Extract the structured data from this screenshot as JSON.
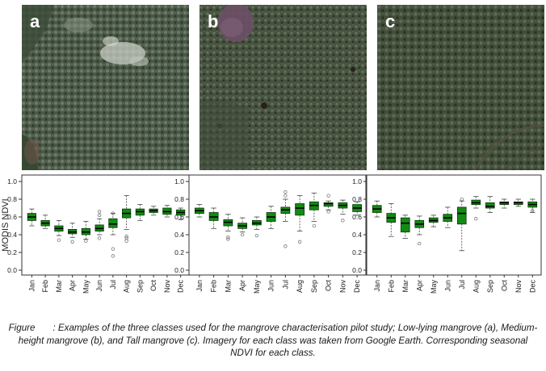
{
  "panels": [
    {
      "label": "a",
      "colors": {
        "base": "#4b5a48",
        "canopy_light": "#6d7b68",
        "canopy_dark": "#2f3a2d"
      },
      "features": [
        "white-cloud-patches",
        "dark-soil-patch"
      ]
    },
    {
      "label": "b",
      "colors": {
        "base": "#46523f",
        "canopy_light": "#62705a",
        "canopy_dark": "#2c3527"
      },
      "features": [
        "purple-water-pond",
        "dark-holes"
      ]
    },
    {
      "label": "c",
      "colors": {
        "base": "#424e3a",
        "canopy_light": "#5d6b54",
        "canopy_dark": "#2a3224"
      },
      "features": [
        "creek-channel"
      ]
    }
  ],
  "colors": {
    "box_fill": "#138a13",
    "box_stroke": "#0a3d0a",
    "axis": "#333333",
    "outlier": "#666666"
  },
  "y_axis_label": "MODIS NDVI",
  "chart_data": [
    {
      "type": "box",
      "categories": [
        "Jan",
        "Feb",
        "Mar",
        "Apr",
        "May",
        "Jun",
        "Jul",
        "Aug",
        "Sep",
        "Oct",
        "Nov",
        "Dec"
      ],
      "ylim": [
        0,
        1.0
      ],
      "yticks": [
        "0.0",
        "0.2",
        "0.4",
        "0.6",
        "0.8",
        "1.0"
      ],
      "boxes": [
        {
          "min": 0.5,
          "q1": 0.56,
          "median": 0.6,
          "q3": 0.64,
          "max": 0.69,
          "outliers": []
        },
        {
          "min": 0.47,
          "q1": 0.5,
          "median": 0.53,
          "q3": 0.56,
          "max": 0.62,
          "outliers": []
        },
        {
          "min": 0.39,
          "q1": 0.44,
          "median": 0.47,
          "q3": 0.5,
          "max": 0.56,
          "outliers": [
            0.34
          ]
        },
        {
          "min": 0.37,
          "q1": 0.41,
          "median": 0.43,
          "q3": 0.46,
          "max": 0.53,
          "outliers": [
            0.32
          ]
        },
        {
          "min": 0.35,
          "q1": 0.4,
          "median": 0.43,
          "q3": 0.47,
          "max": 0.55,
          "outliers": [
            0.33
          ]
        },
        {
          "min": 0.4,
          "q1": 0.44,
          "median": 0.47,
          "q3": 0.51,
          "max": 0.58,
          "outliers": [
            0.36,
            0.62,
            0.66
          ]
        },
        {
          "min": 0.4,
          "q1": 0.48,
          "median": 0.52,
          "q3": 0.58,
          "max": 0.64,
          "outliers": [
            0.16,
            0.24,
            0.64
          ]
        },
        {
          "min": 0.46,
          "q1": 0.59,
          "median": 0.64,
          "q3": 0.69,
          "max": 0.84,
          "outliers": [
            0.33,
            0.36,
            0.38
          ]
        },
        {
          "min": 0.56,
          "q1": 0.62,
          "median": 0.66,
          "q3": 0.69,
          "max": 0.74,
          "outliers": []
        },
        {
          "min": 0.62,
          "q1": 0.65,
          "median": 0.67,
          "q3": 0.69,
          "max": 0.72,
          "outliers": []
        },
        {
          "min": 0.6,
          "q1": 0.63,
          "median": 0.66,
          "q3": 0.7,
          "max": 0.73,
          "outliers": []
        },
        {
          "min": 0.57,
          "q1": 0.62,
          "median": 0.65,
          "q3": 0.68,
          "max": 0.7,
          "outliers": []
        }
      ]
    },
    {
      "type": "box",
      "categories": [
        "Jan",
        "Feb",
        "Mar",
        "Apr",
        "May",
        "Jun",
        "Jul",
        "Aug",
        "Sep",
        "Oct",
        "Nov",
        "Dec"
      ],
      "ylim": [
        0,
        1.0
      ],
      "yticks": [
        "0.0",
        "0.2",
        "0.4",
        "0.6",
        "0.8",
        "1.0"
      ],
      "boxes": [
        {
          "min": 0.6,
          "q1": 0.64,
          "median": 0.67,
          "q3": 0.7,
          "max": 0.74,
          "outliers": []
        },
        {
          "min": 0.47,
          "q1": 0.56,
          "median": 0.6,
          "q3": 0.65,
          "max": 0.7,
          "outliers": []
        },
        {
          "min": 0.44,
          "q1": 0.5,
          "median": 0.54,
          "q3": 0.57,
          "max": 0.63,
          "outliers": [
            0.35,
            0.37
          ]
        },
        {
          "min": 0.43,
          "q1": 0.47,
          "median": 0.5,
          "q3": 0.53,
          "max": 0.59,
          "outliers": [
            0.4
          ]
        },
        {
          "min": 0.46,
          "q1": 0.51,
          "median": 0.53,
          "q3": 0.56,
          "max": 0.6,
          "outliers": [
            0.39
          ]
        },
        {
          "min": 0.47,
          "q1": 0.55,
          "median": 0.6,
          "q3": 0.65,
          "max": 0.72,
          "outliers": []
        },
        {
          "min": 0.55,
          "q1": 0.64,
          "median": 0.68,
          "q3": 0.71,
          "max": 0.8,
          "outliers": [
            0.27,
            0.84,
            0.88
          ]
        },
        {
          "min": 0.44,
          "q1": 0.62,
          "median": 0.7,
          "q3": 0.75,
          "max": 0.84,
          "outliers": [
            0.32
          ]
        },
        {
          "min": 0.55,
          "q1": 0.68,
          "median": 0.73,
          "q3": 0.77,
          "max": 0.87,
          "outliers": [
            0.5
          ]
        },
        {
          "min": 0.68,
          "q1": 0.72,
          "median": 0.75,
          "q3": 0.76,
          "max": 0.78,
          "outliers": [
            0.66,
            0.84
          ]
        },
        {
          "min": 0.63,
          "q1": 0.7,
          "median": 0.73,
          "q3": 0.76,
          "max": 0.79,
          "outliers": [
            0.56
          ]
        },
        {
          "min": 0.62,
          "q1": 0.66,
          "median": 0.7,
          "q3": 0.74,
          "max": 0.77,
          "outliers": []
        }
      ]
    },
    {
      "type": "box",
      "categories": [
        "Jan",
        "Feb",
        "Mar",
        "Apr",
        "May",
        "Jun",
        "Jul",
        "Aug",
        "Sep",
        "Oct",
        "Nov",
        "Dec"
      ],
      "ylim": [
        0,
        1.0
      ],
      "yticks": [
        "0.0",
        "0.2",
        "0.4",
        "0.6",
        "0.8",
        "1.0"
      ],
      "boxes": [
        {
          "min": 0.6,
          "q1": 0.65,
          "median": 0.69,
          "q3": 0.73,
          "max": 0.78,
          "outliers": []
        },
        {
          "min": 0.38,
          "q1": 0.54,
          "median": 0.59,
          "q3": 0.64,
          "max": 0.75,
          "outliers": []
        },
        {
          "min": 0.36,
          "q1": 0.43,
          "median": 0.53,
          "q3": 0.59,
          "max": 0.62,
          "outliers": []
        },
        {
          "min": 0.4,
          "q1": 0.48,
          "median": 0.52,
          "q3": 0.56,
          "max": 0.61,
          "outliers": [
            0.3
          ]
        },
        {
          "min": 0.49,
          "q1": 0.54,
          "median": 0.56,
          "q3": 0.59,
          "max": 0.62,
          "outliers": []
        },
        {
          "min": 0.48,
          "q1": 0.55,
          "median": 0.59,
          "q3": 0.63,
          "max": 0.71,
          "outliers": []
        },
        {
          "min": 0.22,
          "q1": 0.52,
          "median": 0.64,
          "q3": 0.71,
          "max": 0.78,
          "outliers": [
            0.8
          ]
        },
        {
          "min": 0.7,
          "q1": 0.74,
          "median": 0.76,
          "q3": 0.79,
          "max": 0.83,
          "outliers": [
            0.58
          ]
        },
        {
          "min": 0.65,
          "q1": 0.7,
          "median": 0.72,
          "q3": 0.76,
          "max": 0.83,
          "outliers": []
        },
        {
          "min": 0.7,
          "q1": 0.74,
          "median": 0.76,
          "q3": 0.77,
          "max": 0.8,
          "outliers": []
        },
        {
          "min": 0.72,
          "q1": 0.74,
          "median": 0.76,
          "q3": 0.77,
          "max": 0.8,
          "outliers": []
        },
        {
          "min": 0.65,
          "q1": 0.71,
          "median": 0.74,
          "q3": 0.77,
          "max": 0.8,
          "outliers": [
            0.67
          ]
        }
      ]
    }
  ],
  "caption": {
    "label": "Figure",
    "text": ": Examples of the three classes used for the mangrove characterisation pilot study; Low-lying mangrove (a), Medium-height mangrove (b), and Tall mangrove (c). Imagery for each class was taken from Google Earth. Corresponding seasonal NDVI for each class."
  }
}
